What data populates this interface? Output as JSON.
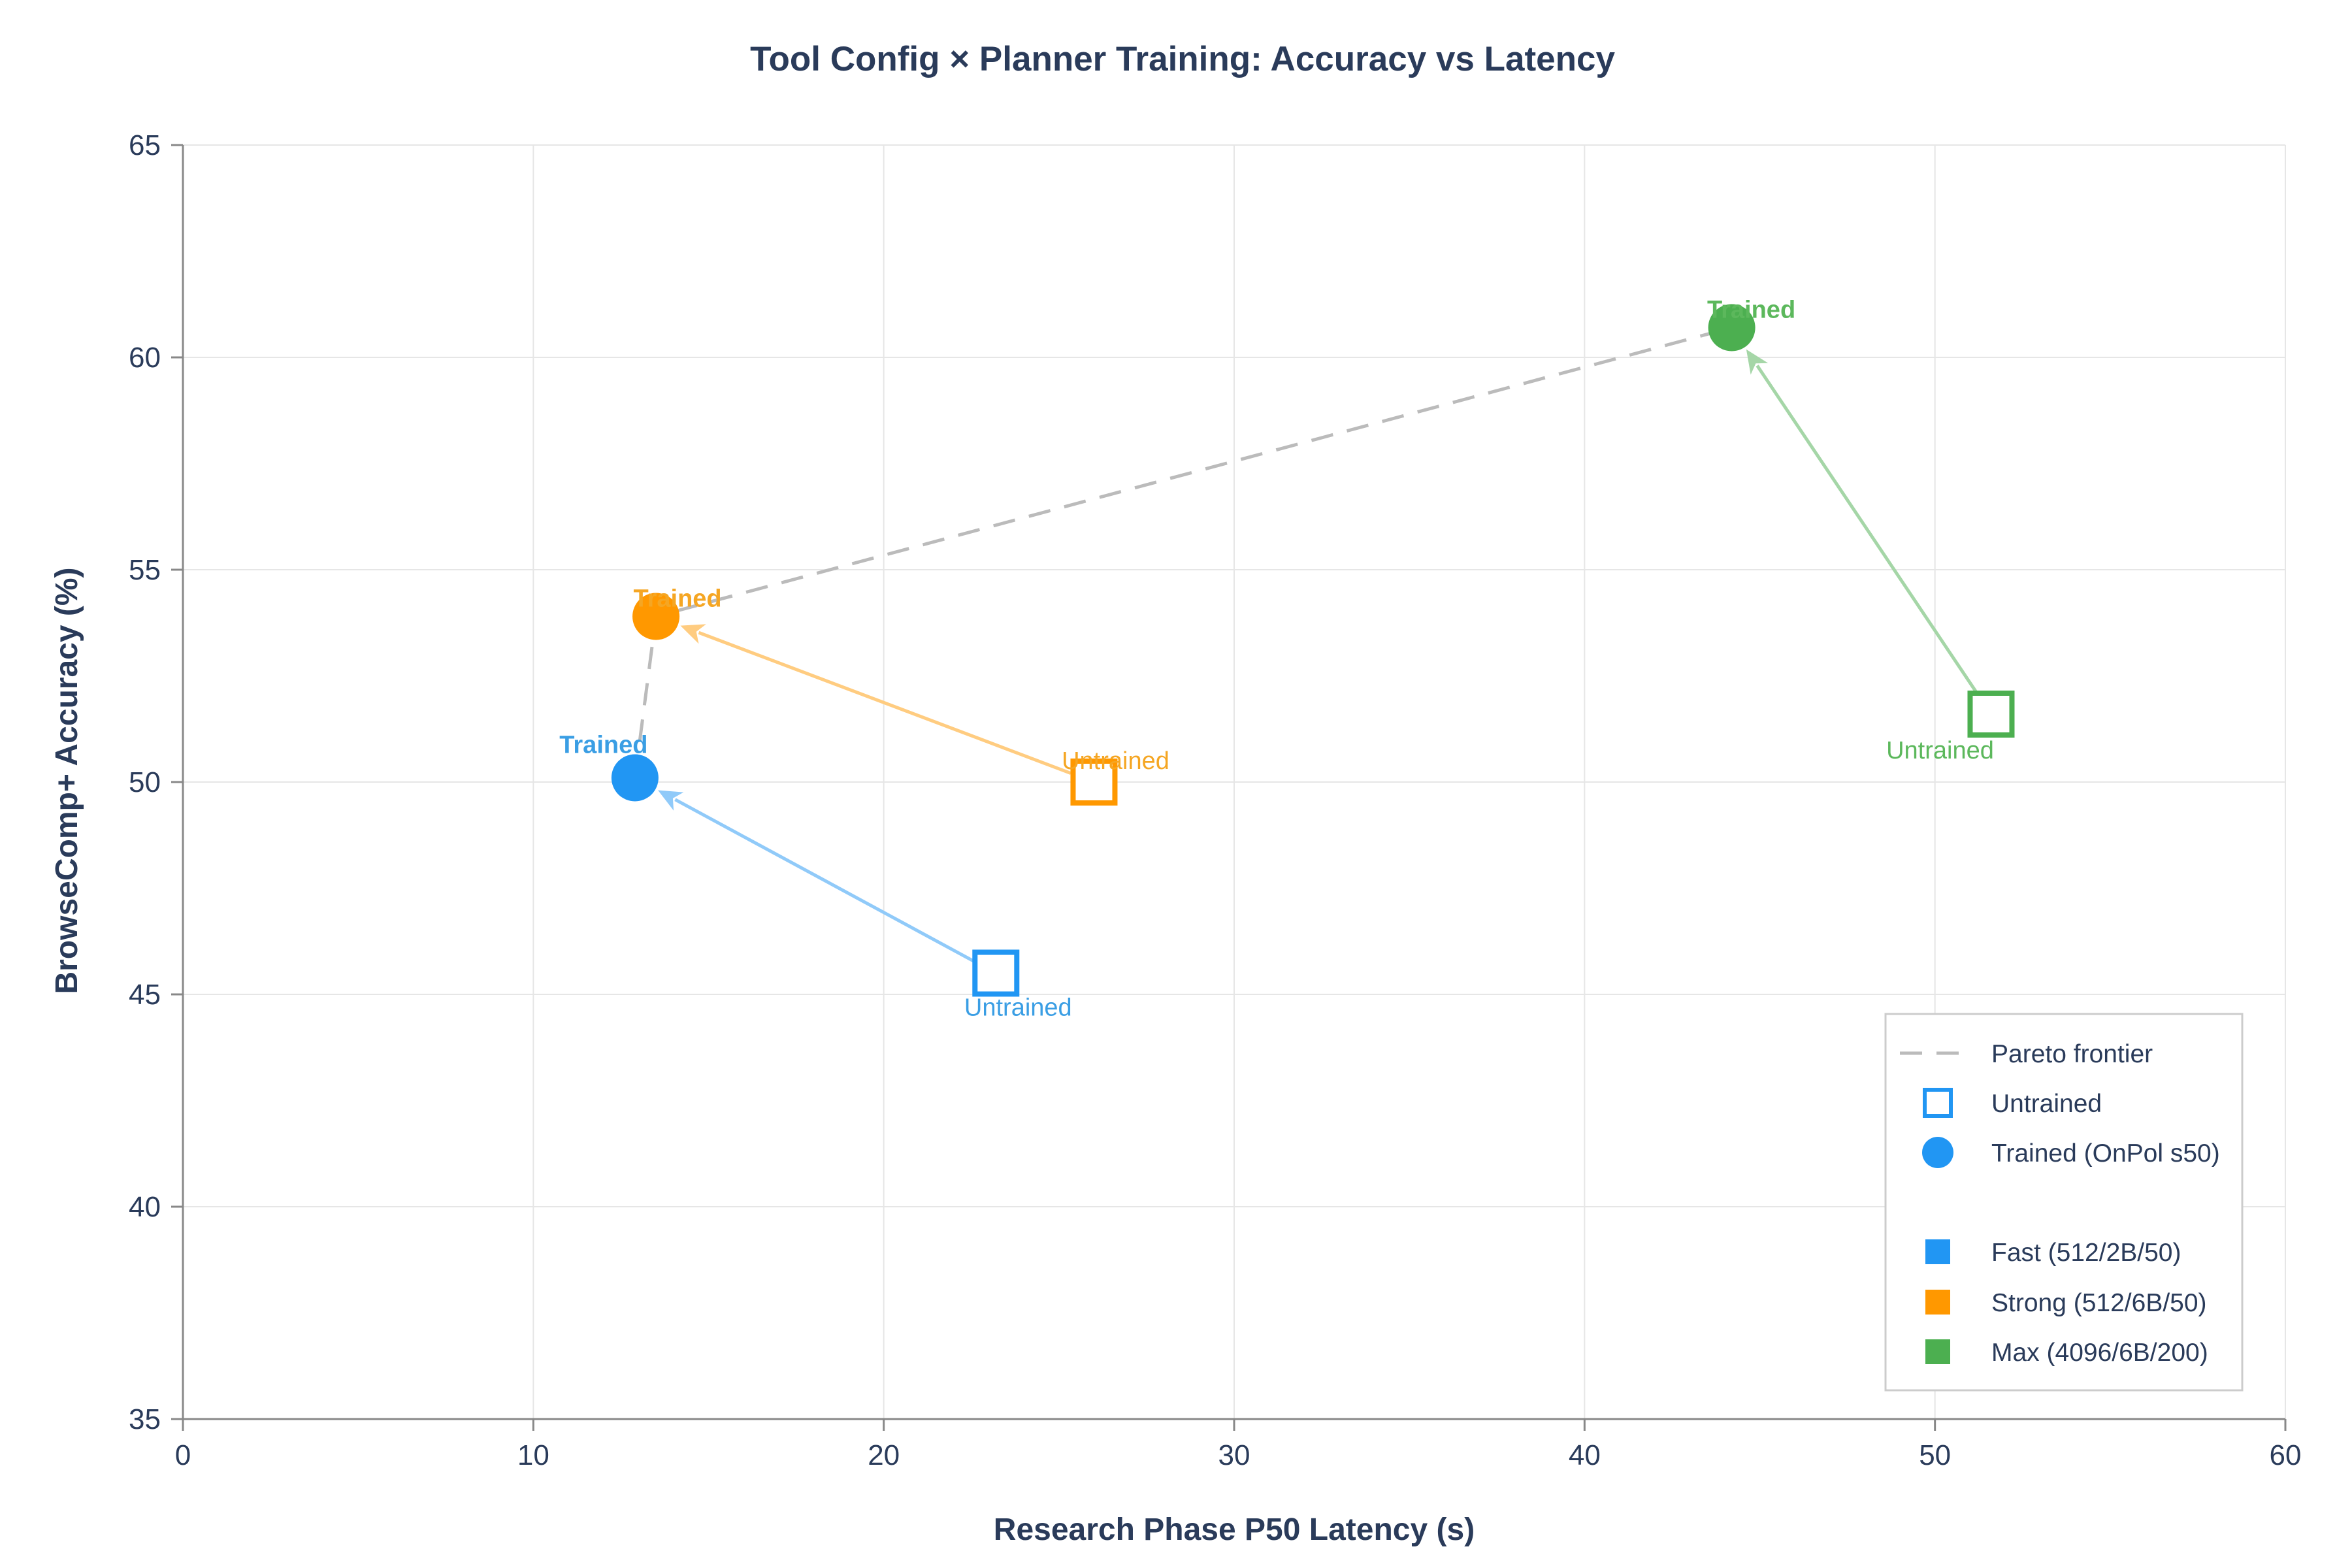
{
  "chart_data": {
    "type": "scatter",
    "title": "Tool Config × Planner Training: Accuracy vs Latency",
    "xlabel": "Research Phase P50 Latency (s)",
    "ylabel": "BrowseComp+ Accuracy (%)",
    "xlim": [
      0,
      60
    ],
    "ylim": [
      35,
      65
    ],
    "x_ticks": [
      "0",
      "10",
      "20",
      "30",
      "40",
      "50",
      "60"
    ],
    "y_ticks": [
      "35",
      "40",
      "45",
      "50",
      "55",
      "60",
      "65"
    ],
    "grid": true,
    "legend_position": "bottom-right",
    "legend": [
      {
        "label": "Pareto frontier",
        "marker": "dashed-line"
      },
      {
        "label": "Untrained",
        "marker": "open-square"
      },
      {
        "label": "Trained (OnPol s50)",
        "marker": "filled-circle"
      },
      {
        "label": "Fast (512/2B/50)",
        "marker": "color-square",
        "color": "#2196f3"
      },
      {
        "label": "Strong (512/6B/50)",
        "marker": "color-square",
        "color": "#ff9800"
      },
      {
        "label": "Max (4096/6B/200)",
        "marker": "color-square",
        "color": "#4caf50"
      }
    ],
    "series": [
      {
        "name": "Fast (512/2B/50)",
        "color": "#2196f3",
        "label_color": "#3a9ee4",
        "arrow_color": "#90caf9",
        "untrained": {
          "x": 23.2,
          "y": 45.5,
          "label": "Untrained"
        },
        "trained": {
          "x": 12.9,
          "y": 50.1,
          "label": "Trained"
        }
      },
      {
        "name": "Strong (512/6B/50)",
        "color": "#ff9800",
        "label_color": "#f5a623",
        "arrow_color": "#ffcc80",
        "untrained": {
          "x": 26.0,
          "y": 50.0,
          "label": "Untrained"
        },
        "trained": {
          "x": 13.5,
          "y": 53.9,
          "label": "Trained"
        }
      },
      {
        "name": "Max (4096/6B/200)",
        "color": "#4caf50",
        "label_color": "#5cb85c",
        "arrow_color": "#a5d6a7",
        "untrained": {
          "x": 51.6,
          "y": 51.6,
          "label": "Untrained"
        },
        "trained": {
          "x": 44.2,
          "y": 60.7,
          "label": "Trained"
        }
      }
    ],
    "pareto_frontier": [
      {
        "x": 12.9,
        "y": 50.1
      },
      {
        "x": 13.5,
        "y": 53.9
      },
      {
        "x": 44.2,
        "y": 60.7
      }
    ]
  }
}
